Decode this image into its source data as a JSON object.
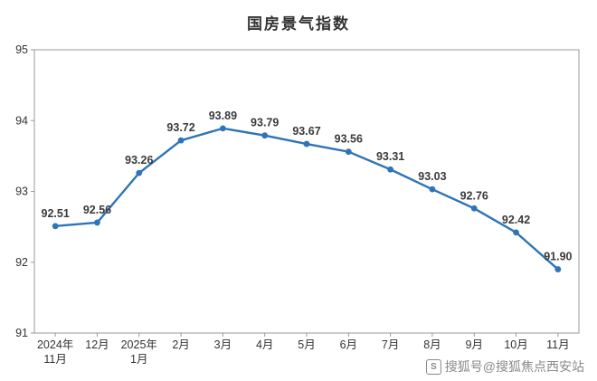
{
  "title": "国房景气指数",
  "watermark": {
    "icon": "S",
    "text": "搜狐号@搜狐焦点西安站"
  },
  "chart_data": {
    "type": "line",
    "title": "国房景气指数",
    "categories": [
      "2024年\n11月",
      "12月",
      "2025年\n1月",
      "2月",
      "3月",
      "4月",
      "5月",
      "6月",
      "7月",
      "8月",
      "9月",
      "10月",
      "11月"
    ],
    "values": [
      92.51,
      92.56,
      93.26,
      93.72,
      93.89,
      93.79,
      93.67,
      93.56,
      93.31,
      93.03,
      92.76,
      92.42,
      91.9
    ],
    "ylabel": "",
    "xlabel": "",
    "ylim": [
      91,
      95
    ],
    "yticks": [
      91,
      92,
      93,
      94,
      95
    ],
    "grid": false,
    "legend": "none",
    "line_color": "#2e74b6",
    "marker_color": "#2e74b6",
    "label_color": "#3a3a3a",
    "axis_color": "#9a9a9a",
    "tick_label_color": "#333333"
  }
}
